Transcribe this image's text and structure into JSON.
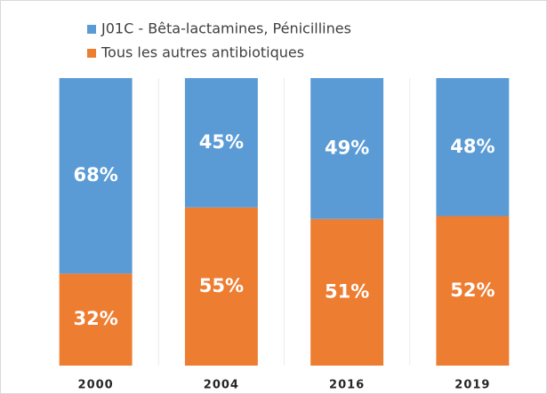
{
  "chart_data": {
    "type": "stacked_bar",
    "categories": [
      "2000",
      "2004",
      "2016",
      "2019"
    ],
    "series": [
      {
        "name": "J01C - Bêta-lactamines, Pénicillines",
        "color": "#5b9bd5",
        "values": [
          68,
          45,
          49,
          48
        ],
        "value_labels": [
          "68%",
          "45%",
          "49%",
          "48%"
        ]
      },
      {
        "name": "Tous les autres antibiotiques",
        "color": "#ed7d31",
        "values": [
          32,
          55,
          51,
          52
        ],
        "value_labels": [
          "32%",
          "55%",
          "51%",
          "52%"
        ]
      }
    ],
    "ylim": [
      0,
      100
    ]
  }
}
